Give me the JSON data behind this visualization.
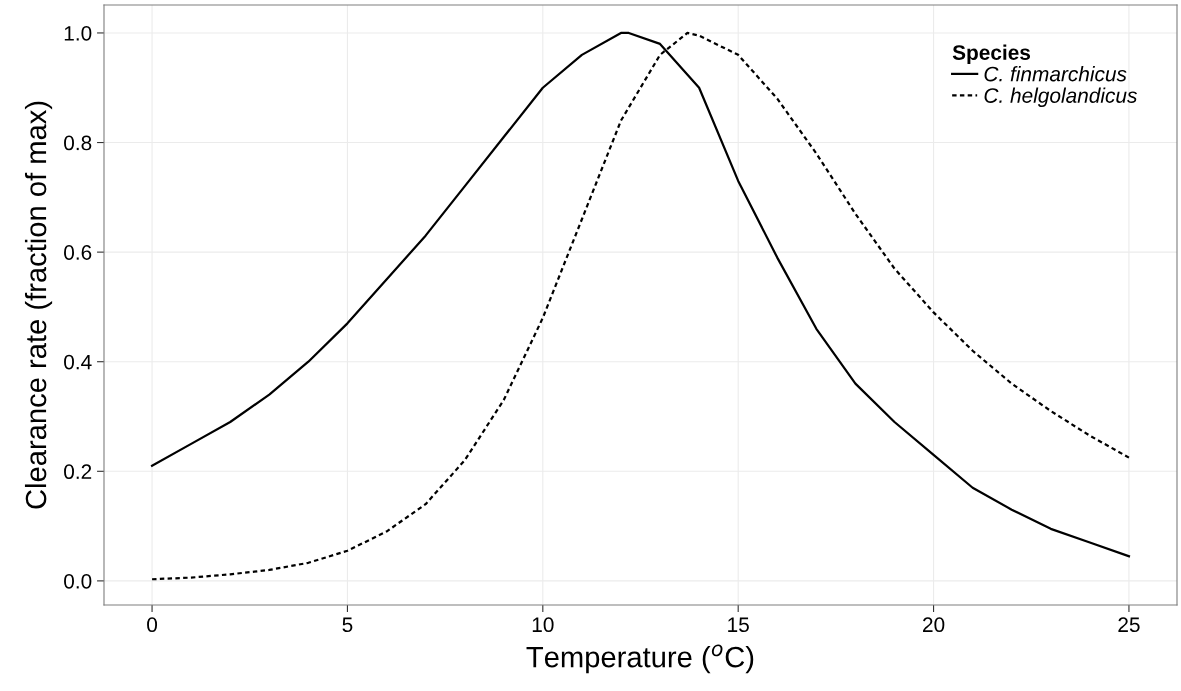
{
  "chart_data": {
    "type": "line",
    "xlabel": "Temperature ($^{o}$C)",
    "ylabel": "Clearance rate (fraction of max)",
    "legend_title": "Species",
    "legend": "top right",
    "grid": true,
    "xlim": [
      -1.23,
      26.23
    ],
    "ylim": [
      -0.044,
      1.051
    ],
    "xticks": [
      0,
      5,
      10,
      15,
      20,
      25
    ],
    "yticks": [
      {
        "value": 0,
        "label": "0.0"
      },
      {
        "value": 0.2,
        "label": "0.2"
      },
      {
        "value": 0.4,
        "label": "0.4"
      },
      {
        "value": 0.6,
        "label": "0.6"
      },
      {
        "value": 0.8,
        "label": "0.8"
      },
      {
        "value": 1,
        "label": "1.0"
      }
    ],
    "series": [
      {
        "name": "C. finmarchicus",
        "color": "#000000",
        "line_style": "solid",
        "x": [
          0,
          1,
          2,
          3,
          4,
          5,
          6,
          7,
          8,
          9,
          10,
          11,
          12,
          12.2,
          13,
          14,
          15,
          16,
          17,
          18,
          19,
          20,
          21,
          22,
          23,
          24,
          25
        ],
        "values": [
          0.21,
          0.25,
          0.29,
          0.34,
          0.4,
          0.47,
          0.55,
          0.63,
          0.72,
          0.81,
          0.9,
          0.96,
          1.0,
          1.0,
          0.98,
          0.9,
          0.73,
          0.59,
          0.46,
          0.36,
          0.29,
          0.23,
          0.17,
          0.13,
          0.095,
          0.07,
          0.045
        ]
      },
      {
        "name": "C. helgolandicus",
        "color": "#000000",
        "line_style": "dotted",
        "x": [
          0,
          1,
          2,
          3,
          4,
          5,
          6,
          7,
          8,
          9,
          10,
          11,
          12,
          13,
          13.7,
          14,
          15,
          16,
          17,
          18,
          19,
          20,
          21,
          22,
          23,
          24,
          25
        ],
        "values": [
          0.003,
          0.006,
          0.012,
          0.02,
          0.033,
          0.055,
          0.09,
          0.14,
          0.22,
          0.33,
          0.48,
          0.66,
          0.84,
          0.96,
          1.0,
          0.995,
          0.96,
          0.88,
          0.78,
          0.67,
          0.57,
          0.49,
          0.42,
          0.36,
          0.31,
          0.265,
          0.225
        ]
      }
    ]
  }
}
